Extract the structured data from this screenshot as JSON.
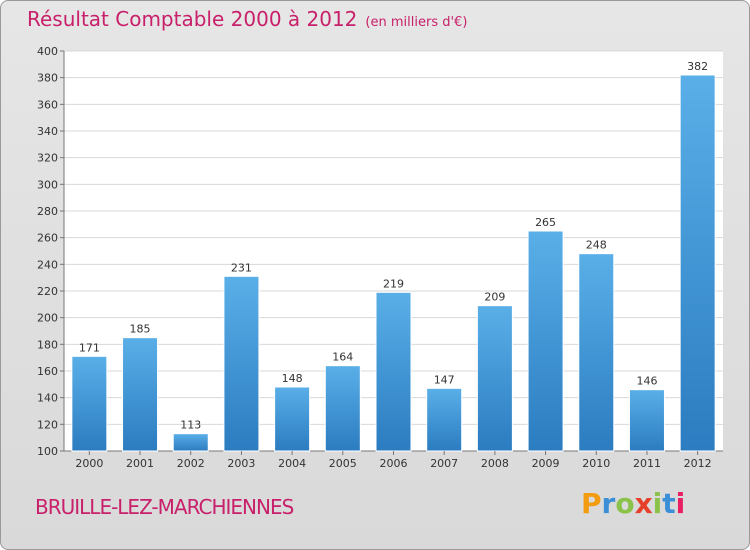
{
  "title": {
    "main": "Résultat Comptable 2000 à 2012",
    "unit": "(en milliers d'€)"
  },
  "commune": "BRUILLE-LEZ-MARCHIENNES",
  "logo": {
    "letters": [
      "P",
      "r",
      "o",
      "x",
      "i",
      "t",
      "i"
    ],
    "colors": [
      "#f39c12",
      "#3b8fd6",
      "#8bc34a",
      "#e6402a",
      "#8bc34a",
      "#3b8fd6",
      "#e91e63"
    ]
  },
  "colors": {
    "bar_top": "#5aafe8",
    "bar_bottom": "#2b7cc0",
    "title": "#c8206a"
  },
  "chart_data": {
    "type": "bar",
    "title": "Résultat Comptable 2000 à 2012",
    "ylabel": "en milliers d'€",
    "xlabel": "",
    "categories": [
      "2000",
      "2001",
      "2002",
      "2003",
      "2004",
      "2005",
      "2006",
      "2007",
      "2008",
      "2009",
      "2010",
      "2011",
      "2012"
    ],
    "values": [
      171,
      185,
      113,
      231,
      148,
      164,
      219,
      147,
      209,
      265,
      248,
      146,
      382
    ],
    "ylim": [
      100,
      400
    ],
    "yticks": [
      100,
      120,
      140,
      160,
      180,
      200,
      220,
      240,
      260,
      280,
      300,
      320,
      340,
      360,
      380,
      400
    ],
    "grid": true
  }
}
